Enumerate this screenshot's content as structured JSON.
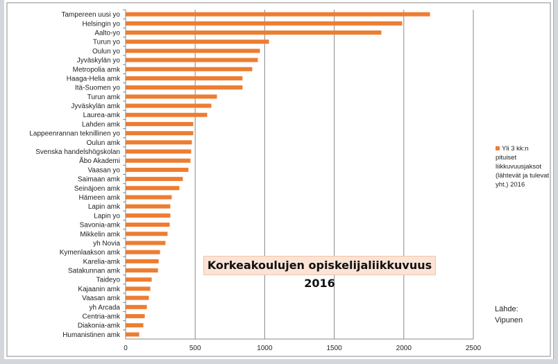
{
  "chart_data": {
    "type": "bar",
    "orientation": "horizontal",
    "title": "Korkeakoulujen opiskelijaliikkuvuus 2016",
    "categories": [
      "Tampereen uusi yo",
      "Helsingin yo",
      "Aalto-yo",
      "Turun yo",
      "Oulun yo",
      "Jyväskylän yo",
      "Metropolia amk",
      "Haaga-Helia amk",
      "Itä-Suomen yo",
      "Turun amk",
      "Jyväskylän amk",
      "Laurea-amk",
      "Lahden amk",
      "Lappeenrannan teknillinen yo",
      "Oulun amk",
      "Svenska handelshögskolan",
      "Åbo Akademi",
      "Vaasan yo",
      "Saimaan amk",
      "Seinäjoen amk",
      "Hämeen amk",
      "Lapin amk",
      "Lapin yo",
      "Savonia-amk",
      "Mikkelin amk",
      "yh Novia",
      "Kymenlaakson amk",
      "Karelia-amk",
      "Satakunnan amk",
      "Taideyo",
      "Kajaanin amk",
      "Vaasan amk",
      "yh Arcada",
      "Centria-amk",
      "Diakonia-amk",
      "Humanistinen amk"
    ],
    "series": [
      {
        "name": "Yli 3 kk:n pituiset liikkuvuusjaksot (lähtevät ja tulevat yht.) 2016",
        "color": "#ed7d31",
        "values": [
          2186,
          1986,
          1836,
          1028,
          963,
          948,
          908,
          838,
          838,
          654,
          614,
          584,
          484,
          484,
          474,
          469,
          464,
          449,
          409,
          384,
          329,
          319,
          319,
          314,
          299,
          284,
          245,
          235,
          230,
          185,
          175,
          165,
          150,
          135,
          125,
          95
        ]
      }
    ],
    "xlim": [
      0,
      2500
    ],
    "xticks": [
      "0",
      "500",
      "1000",
      "1500",
      "2000",
      "2500"
    ],
    "grid": "vertical",
    "legend": "right",
    "annotation": "Lähde: Vipunen"
  },
  "legend": {
    "label": "Yli 3 kk:n pituiset liikkuvuusjaksot (lähtevät ja tulevat yht.) 2016"
  },
  "source": {
    "label": "Lähde:",
    "value": "Vipunen"
  }
}
